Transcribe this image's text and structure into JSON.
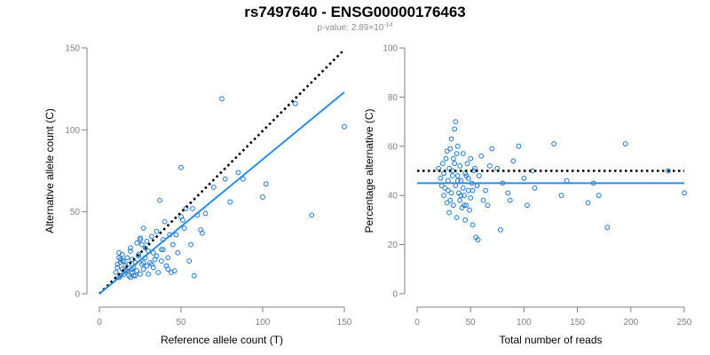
{
  "title": "rs7497640 - ENSG00000176463",
  "subtitle": {
    "prefix": "p-value: 2.89×10",
    "exponent": "-14"
  },
  "colors": {
    "points": "#1f78c8",
    "fit_line": "#2b8ae6",
    "reference_line": "#000000",
    "axis": "#808080"
  },
  "chart_data": [
    {
      "type": "scatter",
      "xlabel": "Reference allele count (T)",
      "ylabel": "Alternative allele count (C)",
      "xlim": [
        0,
        150
      ],
      "ylim": [
        0,
        150
      ],
      "xticks": [
        0,
        50,
        100,
        150
      ],
      "yticks": [
        0,
        50,
        100,
        150
      ],
      "grid": false,
      "lines": [
        {
          "kind": "reference",
          "style": "dotted",
          "x": [
            0,
            150
          ],
          "y": [
            0,
            149
          ]
        },
        {
          "kind": "fit",
          "style": "solid",
          "x": [
            0,
            150
          ],
          "y": [
            0,
            123
          ]
        }
      ],
      "x": [
        10,
        11,
        12,
        12,
        13,
        13,
        14,
        14,
        15,
        15,
        16,
        17,
        17,
        18,
        18,
        19,
        19,
        20,
        20,
        21,
        22,
        22,
        23,
        23,
        24,
        25,
        25,
        26,
        26,
        27,
        27,
        28,
        28,
        29,
        30,
        30,
        31,
        32,
        33,
        33,
        34,
        35,
        36,
        37,
        38,
        38,
        39,
        40,
        41,
        42,
        43,
        44,
        45,
        46,
        48,
        50,
        50,
        52,
        53,
        55,
        57,
        58,
        60,
        63,
        65,
        70,
        75,
        77,
        80,
        85,
        88,
        100,
        102,
        120,
        130,
        150,
        11,
        13,
        16,
        19,
        21,
        24,
        27,
        29,
        32,
        35,
        39,
        42,
        47,
        51,
        56,
        62,
        12,
        14,
        20,
        25
      ],
      "y": [
        13,
        18,
        10,
        25,
        11,
        19,
        15,
        24,
        12,
        20,
        17,
        14,
        22,
        11,
        18,
        10,
        26,
        13,
        21,
        16,
        11,
        19,
        14,
        31,
        23,
        12,
        34,
        18,
        30,
        15,
        40,
        22,
        28,
        17,
        12,
        26,
        19,
        35,
        16,
        25,
        21,
        38,
        13,
        57,
        27,
        20,
        33,
        44,
        17,
        22,
        36,
        13,
        30,
        14,
        25,
        77,
        47,
        40,
        52,
        20,
        52,
        11,
        48,
        37,
        49,
        65,
        119,
        70,
        56,
        74,
        70,
        59,
        67,
        116,
        48,
        102,
        16,
        21,
        14,
        28,
        11,
        24,
        19,
        32,
        18,
        23,
        27,
        15,
        36,
        45,
        30,
        39,
        22,
        20,
        15,
        33
      ]
    },
    {
      "type": "scatter",
      "xlabel": "Total number of reads",
      "ylabel": "Percentage alternative (C)",
      "xlim": [
        0,
        250
      ],
      "ylim": [
        0,
        100
      ],
      "xticks": [
        0,
        50,
        100,
        150,
        200,
        250
      ],
      "yticks": [
        0,
        20,
        40,
        60,
        80,
        100
      ],
      "grid": false,
      "lines": [
        {
          "kind": "reference",
          "style": "dotted",
          "x": [
            0,
            250
          ],
          "y": [
            50,
            50
          ]
        },
        {
          "kind": "fit",
          "style": "solid",
          "x": [
            0,
            250
          ],
          "y": [
            45,
            45
          ]
        }
      ],
      "x": [
        20,
        22,
        23,
        24,
        25,
        25,
        26,
        27,
        28,
        28,
        29,
        30,
        30,
        31,
        32,
        32,
        33,
        34,
        34,
        35,
        35,
        36,
        36,
        37,
        37,
        38,
        38,
        39,
        40,
        40,
        41,
        42,
        43,
        43,
        44,
        45,
        45,
        46,
        47,
        48,
        48,
        49,
        50,
        50,
        51,
        52,
        53,
        54,
        55,
        56,
        57,
        58,
        60,
        62,
        64,
        66,
        70,
        75,
        78,
        80,
        85,
        87,
        90,
        95,
        100,
        103,
        108,
        110,
        128,
        135,
        140,
        160,
        165,
        170,
        178,
        195,
        235,
        250,
        29,
        33,
        38,
        41,
        46,
        52,
        31,
        44,
        56,
        68
      ],
      "y": [
        51,
        47,
        44,
        53,
        40,
        49,
        43,
        55,
        37,
        58,
        46,
        33,
        51,
        59,
        41,
        63,
        48,
        36,
        55,
        53,
        67,
        44,
        70,
        31,
        57,
        48,
        60,
        41,
        38,
        52,
        46,
        35,
        43,
        57,
        40,
        30,
        49,
        36,
        53,
        42,
        47,
        34,
        55,
        39,
        45,
        28,
        50,
        51,
        23,
        44,
        22,
        48,
        56,
        38,
        42,
        36,
        59,
        51,
        26,
        45,
        41,
        38,
        54,
        60,
        47,
        36,
        50,
        43,
        61,
        40,
        46,
        37,
        45,
        40,
        27,
        61,
        50,
        41,
        42,
        50,
        46,
        40,
        48,
        42,
        38,
        36,
        44,
        52
      ]
    }
  ]
}
